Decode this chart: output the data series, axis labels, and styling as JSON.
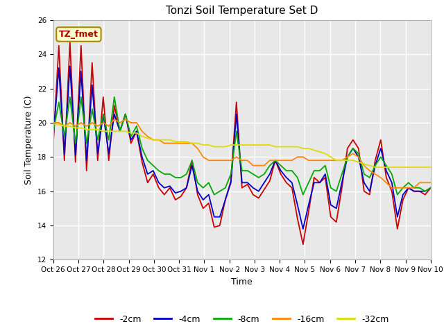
{
  "title": "Tonzi Soil Temperature Set D",
  "xlabel": "Time",
  "ylabel": "Soil Temperature (C)",
  "ylim": [
    12,
    26
  ],
  "yticks": [
    12,
    14,
    16,
    18,
    20,
    22,
    24,
    26
  ],
  "xtick_labels": [
    "Oct 26",
    "Oct 27",
    "Oct 28",
    "Oct 29",
    "Oct 30",
    "Oct 31",
    "Nov 1",
    "Nov 2",
    "Nov 3",
    "Nov 4",
    "Nov 5",
    "Nov 6",
    "Nov 7",
    "Nov 8",
    "Nov 9",
    "Nov 10"
  ],
  "legend_labels": [
    "-2cm",
    "-4cm",
    "-8cm",
    "-16cm",
    "-32cm"
  ],
  "line_colors": [
    "#cc0000",
    "#0000cc",
    "#00aa00",
    "#ff8800",
    "#dddd00"
  ],
  "annotation_text": "TZ_fmet",
  "annotation_color": "#aa0000",
  "annotation_bg": "#ffffcc",
  "annotation_border": "#aa8800",
  "figure_bg": "#ffffff",
  "plot_bg": "#e8e8e8",
  "series_2cm": [
    18.8,
    24.5,
    17.8,
    24.7,
    17.7,
    24.5,
    17.2,
    23.5,
    17.8,
    21.5,
    17.8,
    21.0,
    19.5,
    20.5,
    18.8,
    19.5,
    17.7,
    16.5,
    17.0,
    16.2,
    15.8,
    16.2,
    15.5,
    15.7,
    16.2,
    17.8,
    15.8,
    15.0,
    15.3,
    13.9,
    14.0,
    15.5,
    16.6,
    21.2,
    16.2,
    16.4,
    15.8,
    15.6,
    16.1,
    16.6,
    17.8,
    17.0,
    16.5,
    16.2,
    14.4,
    12.9,
    14.8,
    16.8,
    16.5,
    16.8,
    14.5,
    14.2,
    16.2,
    18.5,
    19.0,
    18.5,
    16.0,
    15.8,
    17.8,
    19.0,
    16.8,
    16.0,
    13.8,
    15.5,
    16.2,
    16.0,
    16.0,
    15.8,
    16.2
  ],
  "series_4cm": [
    19.2,
    23.2,
    18.2,
    23.3,
    18.1,
    23.0,
    17.8,
    22.2,
    18.2,
    20.5,
    18.2,
    20.5,
    19.5,
    20.5,
    19.0,
    19.5,
    18.0,
    17.0,
    17.2,
    16.5,
    16.2,
    16.3,
    15.9,
    16.0,
    16.2,
    17.5,
    16.0,
    15.5,
    15.8,
    14.5,
    14.5,
    15.5,
    16.5,
    20.5,
    16.5,
    16.5,
    16.2,
    16.0,
    16.5,
    17.0,
    17.8,
    17.2,
    16.8,
    16.5,
    15.2,
    13.8,
    15.2,
    16.5,
    16.5,
    17.0,
    15.2,
    15.0,
    16.5,
    18.0,
    18.5,
    18.0,
    16.5,
    16.0,
    17.5,
    18.5,
    17.2,
    16.5,
    14.5,
    15.8,
    16.2,
    16.0,
    16.0,
    16.0,
    16.2
  ],
  "series_8cm": [
    19.5,
    21.2,
    19.2,
    21.5,
    18.8,
    21.5,
    18.8,
    20.8,
    19.0,
    20.5,
    19.0,
    21.5,
    19.5,
    20.5,
    19.2,
    19.8,
    18.5,
    17.8,
    17.5,
    17.2,
    17.0,
    17.0,
    16.8,
    16.8,
    17.0,
    17.8,
    16.5,
    16.2,
    16.5,
    15.8,
    16.0,
    16.2,
    17.0,
    19.5,
    17.2,
    17.2,
    17.0,
    16.8,
    17.0,
    17.5,
    17.8,
    17.5,
    17.2,
    17.2,
    16.8,
    15.8,
    16.5,
    17.2,
    17.2,
    17.5,
    16.2,
    16.0,
    17.0,
    18.0,
    18.5,
    18.2,
    17.0,
    16.8,
    17.5,
    18.0,
    17.5,
    17.0,
    15.8,
    16.2,
    16.5,
    16.2,
    16.2,
    16.0,
    16.2
  ],
  "series_16cm": [
    20.0,
    20.0,
    19.8,
    20.0,
    19.8,
    20.0,
    19.8,
    20.0,
    19.8,
    20.0,
    19.8,
    20.2,
    20.0,
    20.2,
    20.0,
    20.0,
    19.5,
    19.2,
    19.0,
    19.0,
    18.8,
    18.8,
    18.8,
    18.8,
    18.8,
    18.8,
    18.5,
    18.0,
    17.8,
    17.8,
    17.8,
    17.8,
    17.8,
    18.0,
    17.8,
    17.8,
    17.5,
    17.5,
    17.5,
    17.8,
    17.8,
    17.8,
    17.8,
    17.8,
    18.0,
    18.0,
    17.8,
    17.8,
    17.8,
    17.8,
    17.8,
    17.8,
    17.8,
    18.0,
    18.2,
    18.0,
    17.5,
    17.2,
    17.0,
    16.8,
    16.5,
    16.2,
    16.2,
    16.2,
    16.2,
    16.2,
    16.5,
    16.5,
    16.5
  ],
  "series_32cm": [
    19.9,
    19.9,
    19.8,
    19.8,
    19.7,
    19.7,
    19.6,
    19.6,
    19.6,
    19.5,
    19.5,
    19.5,
    19.5,
    19.5,
    19.4,
    19.4,
    19.2,
    19.1,
    19.0,
    19.0,
    19.0,
    19.0,
    18.9,
    18.9,
    18.9,
    18.8,
    18.8,
    18.7,
    18.7,
    18.6,
    18.6,
    18.6,
    18.7,
    18.7,
    18.7,
    18.7,
    18.7,
    18.7,
    18.7,
    18.7,
    18.6,
    18.6,
    18.6,
    18.6,
    18.6,
    18.5,
    18.5,
    18.4,
    18.3,
    18.2,
    18.0,
    17.8,
    17.8,
    17.8,
    17.8,
    17.7,
    17.6,
    17.5,
    17.4,
    17.4,
    17.4,
    17.4,
    17.4,
    17.4,
    17.4,
    17.4,
    17.4,
    17.4,
    17.4
  ]
}
